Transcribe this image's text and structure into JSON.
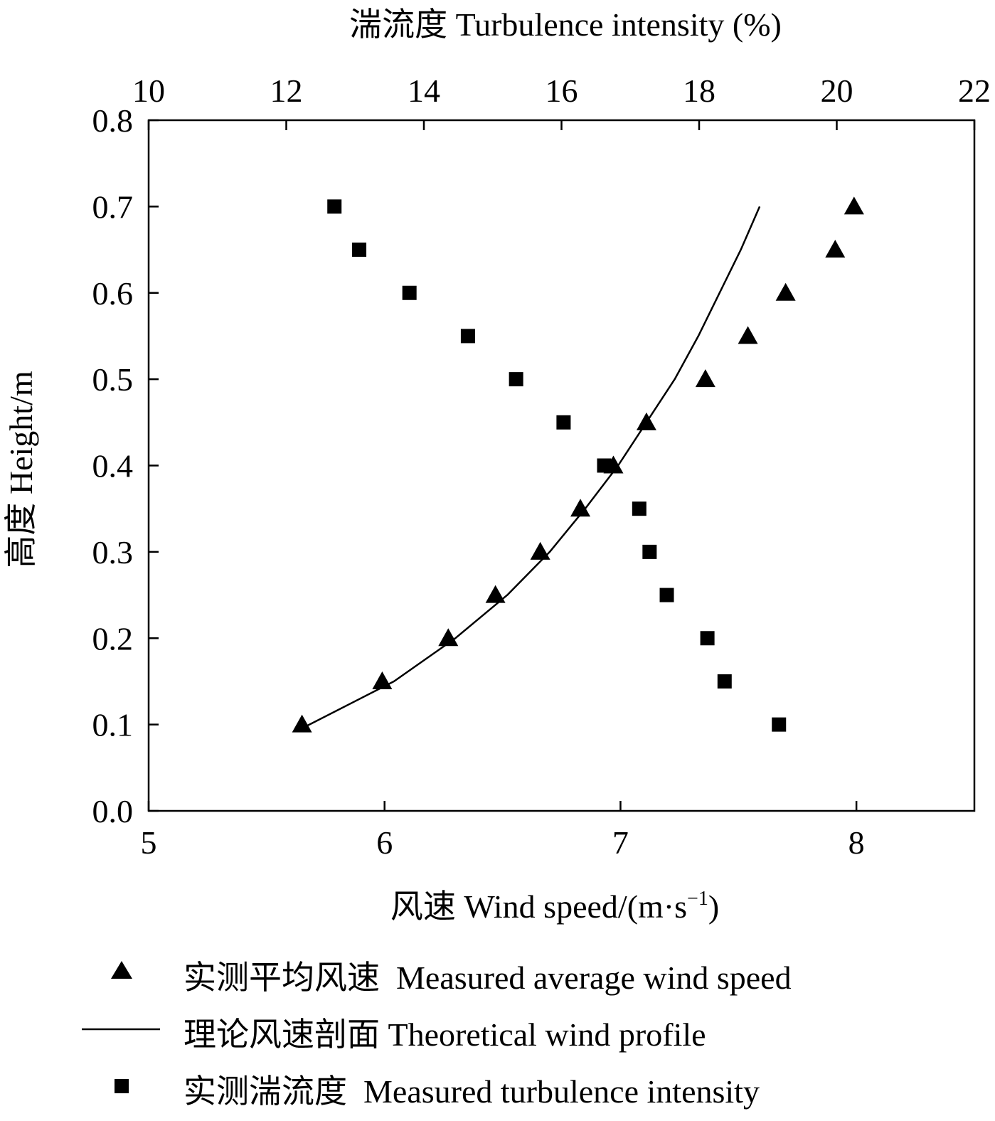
{
  "chart_data": {
    "type": "scatter",
    "title": "",
    "xlabel": "风速 Wind speed/(m·s",
    "xlabel_sup": "−1",
    "xlabel_end": ")",
    "x2label": "湍流度 Turbulence intensity (%)",
    "ylabel": "高度 Height/m",
    "xlim": [
      5,
      8.5
    ],
    "x2lim": [
      10,
      22
    ],
    "ylim": [
      0,
      0.8
    ],
    "xticks": [
      "5",
      "6",
      "7",
      "8"
    ],
    "x2ticks": [
      "10",
      "12",
      "14",
      "16",
      "18",
      "20",
      "22"
    ],
    "yticks": [
      "0.0",
      "0.1",
      "0.2",
      "0.3",
      "0.4",
      "0.5",
      "0.6",
      "0.7",
      "0.8"
    ],
    "grid": false,
    "legend_position": "bottom",
    "series": [
      {
        "name": "实测平均风速  Measured average wind speed",
        "marker": "triangle",
        "axis": "bottom",
        "x": [
          5.65,
          5.99,
          6.27,
          6.47,
          6.66,
          6.83,
          6.97,
          7.11,
          7.36,
          7.54,
          7.7,
          7.91,
          7.99
        ],
        "y": [
          0.1,
          0.15,
          0.2,
          0.25,
          0.3,
          0.35,
          0.4,
          0.45,
          0.5,
          0.55,
          0.6,
          0.65,
          0.7
        ]
      },
      {
        "name": "理论风速剖面 Theoretical wind profile",
        "marker": "line",
        "axis": "bottom",
        "x": [
          5.66,
          6.04,
          6.3,
          6.52,
          6.7,
          6.85,
          6.99,
          7.11,
          7.23,
          7.33,
          7.42,
          7.51,
          7.59
        ],
        "y": [
          0.097,
          0.15,
          0.2,
          0.25,
          0.3,
          0.35,
          0.4,
          0.45,
          0.5,
          0.55,
          0.6,
          0.65,
          0.7
        ]
      },
      {
        "name": "实测湍流度  Measured turbulence intensity",
        "marker": "square",
        "axis": "top",
        "x": [
          19.16,
          18.37,
          18.12,
          17.53,
          17.28,
          17.13,
          16.62,
          16.03,
          15.34,
          14.64,
          13.79,
          13.06,
          12.7
        ],
        "y": [
          0.1,
          0.15,
          0.2,
          0.25,
          0.3,
          0.35,
          0.4,
          0.45,
          0.5,
          0.55,
          0.6,
          0.65,
          0.7
        ]
      }
    ]
  }
}
